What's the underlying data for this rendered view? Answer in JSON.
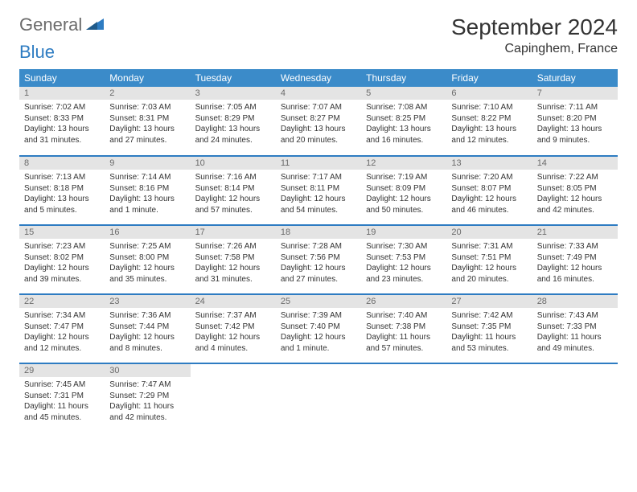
{
  "brand": {
    "name1": "General",
    "name2": "Blue"
  },
  "title": "September 2024",
  "location": "Capinghem, France",
  "style": {
    "header_bg": "#3b8bc9",
    "header_text": "#ffffff",
    "accent_border": "#2e7cc2",
    "daynum_bg": "#e4e4e4",
    "daynum_text": "#6b6b6b",
    "body_text": "#333333",
    "page_bg": "#ffffff",
    "logo_gray": "#6b6b6b",
    "logo_blue": "#2e7cc2",
    "title_fontsize": 28,
    "location_fontsize": 16,
    "header_fontsize": 12,
    "daynum_fontsize": 11,
    "cell_fontsize": 10
  },
  "weekdays": [
    "Sunday",
    "Monday",
    "Tuesday",
    "Wednesday",
    "Thursday",
    "Friday",
    "Saturday"
  ],
  "weeks": [
    [
      {
        "n": "1",
        "sr": "Sunrise: 7:02 AM",
        "ss": "Sunset: 8:33 PM",
        "d1": "Daylight: 13 hours",
        "d2": "and 31 minutes."
      },
      {
        "n": "2",
        "sr": "Sunrise: 7:03 AM",
        "ss": "Sunset: 8:31 PM",
        "d1": "Daylight: 13 hours",
        "d2": "and 27 minutes."
      },
      {
        "n": "3",
        "sr": "Sunrise: 7:05 AM",
        "ss": "Sunset: 8:29 PM",
        "d1": "Daylight: 13 hours",
        "d2": "and 24 minutes."
      },
      {
        "n": "4",
        "sr": "Sunrise: 7:07 AM",
        "ss": "Sunset: 8:27 PM",
        "d1": "Daylight: 13 hours",
        "d2": "and 20 minutes."
      },
      {
        "n": "5",
        "sr": "Sunrise: 7:08 AM",
        "ss": "Sunset: 8:25 PM",
        "d1": "Daylight: 13 hours",
        "d2": "and 16 minutes."
      },
      {
        "n": "6",
        "sr": "Sunrise: 7:10 AM",
        "ss": "Sunset: 8:22 PM",
        "d1": "Daylight: 13 hours",
        "d2": "and 12 minutes."
      },
      {
        "n": "7",
        "sr": "Sunrise: 7:11 AM",
        "ss": "Sunset: 8:20 PM",
        "d1": "Daylight: 13 hours",
        "d2": "and 9 minutes."
      }
    ],
    [
      {
        "n": "8",
        "sr": "Sunrise: 7:13 AM",
        "ss": "Sunset: 8:18 PM",
        "d1": "Daylight: 13 hours",
        "d2": "and 5 minutes."
      },
      {
        "n": "9",
        "sr": "Sunrise: 7:14 AM",
        "ss": "Sunset: 8:16 PM",
        "d1": "Daylight: 13 hours",
        "d2": "and 1 minute."
      },
      {
        "n": "10",
        "sr": "Sunrise: 7:16 AM",
        "ss": "Sunset: 8:14 PM",
        "d1": "Daylight: 12 hours",
        "d2": "and 57 minutes."
      },
      {
        "n": "11",
        "sr": "Sunrise: 7:17 AM",
        "ss": "Sunset: 8:11 PM",
        "d1": "Daylight: 12 hours",
        "d2": "and 54 minutes."
      },
      {
        "n": "12",
        "sr": "Sunrise: 7:19 AM",
        "ss": "Sunset: 8:09 PM",
        "d1": "Daylight: 12 hours",
        "d2": "and 50 minutes."
      },
      {
        "n": "13",
        "sr": "Sunrise: 7:20 AM",
        "ss": "Sunset: 8:07 PM",
        "d1": "Daylight: 12 hours",
        "d2": "and 46 minutes."
      },
      {
        "n": "14",
        "sr": "Sunrise: 7:22 AM",
        "ss": "Sunset: 8:05 PM",
        "d1": "Daylight: 12 hours",
        "d2": "and 42 minutes."
      }
    ],
    [
      {
        "n": "15",
        "sr": "Sunrise: 7:23 AM",
        "ss": "Sunset: 8:02 PM",
        "d1": "Daylight: 12 hours",
        "d2": "and 39 minutes."
      },
      {
        "n": "16",
        "sr": "Sunrise: 7:25 AM",
        "ss": "Sunset: 8:00 PM",
        "d1": "Daylight: 12 hours",
        "d2": "and 35 minutes."
      },
      {
        "n": "17",
        "sr": "Sunrise: 7:26 AM",
        "ss": "Sunset: 7:58 PM",
        "d1": "Daylight: 12 hours",
        "d2": "and 31 minutes."
      },
      {
        "n": "18",
        "sr": "Sunrise: 7:28 AM",
        "ss": "Sunset: 7:56 PM",
        "d1": "Daylight: 12 hours",
        "d2": "and 27 minutes."
      },
      {
        "n": "19",
        "sr": "Sunrise: 7:30 AM",
        "ss": "Sunset: 7:53 PM",
        "d1": "Daylight: 12 hours",
        "d2": "and 23 minutes."
      },
      {
        "n": "20",
        "sr": "Sunrise: 7:31 AM",
        "ss": "Sunset: 7:51 PM",
        "d1": "Daylight: 12 hours",
        "d2": "and 20 minutes."
      },
      {
        "n": "21",
        "sr": "Sunrise: 7:33 AM",
        "ss": "Sunset: 7:49 PM",
        "d1": "Daylight: 12 hours",
        "d2": "and 16 minutes."
      }
    ],
    [
      {
        "n": "22",
        "sr": "Sunrise: 7:34 AM",
        "ss": "Sunset: 7:47 PM",
        "d1": "Daylight: 12 hours",
        "d2": "and 12 minutes."
      },
      {
        "n": "23",
        "sr": "Sunrise: 7:36 AM",
        "ss": "Sunset: 7:44 PM",
        "d1": "Daylight: 12 hours",
        "d2": "and 8 minutes."
      },
      {
        "n": "24",
        "sr": "Sunrise: 7:37 AM",
        "ss": "Sunset: 7:42 PM",
        "d1": "Daylight: 12 hours",
        "d2": "and 4 minutes."
      },
      {
        "n": "25",
        "sr": "Sunrise: 7:39 AM",
        "ss": "Sunset: 7:40 PM",
        "d1": "Daylight: 12 hours",
        "d2": "and 1 minute."
      },
      {
        "n": "26",
        "sr": "Sunrise: 7:40 AM",
        "ss": "Sunset: 7:38 PM",
        "d1": "Daylight: 11 hours",
        "d2": "and 57 minutes."
      },
      {
        "n": "27",
        "sr": "Sunrise: 7:42 AM",
        "ss": "Sunset: 7:35 PM",
        "d1": "Daylight: 11 hours",
        "d2": "and 53 minutes."
      },
      {
        "n": "28",
        "sr": "Sunrise: 7:43 AM",
        "ss": "Sunset: 7:33 PM",
        "d1": "Daylight: 11 hours",
        "d2": "and 49 minutes."
      }
    ],
    [
      {
        "n": "29",
        "sr": "Sunrise: 7:45 AM",
        "ss": "Sunset: 7:31 PM",
        "d1": "Daylight: 11 hours",
        "d2": "and 45 minutes."
      },
      {
        "n": "30",
        "sr": "Sunrise: 7:47 AM",
        "ss": "Sunset: 7:29 PM",
        "d1": "Daylight: 11 hours",
        "d2": "and 42 minutes."
      },
      null,
      null,
      null,
      null,
      null
    ]
  ]
}
